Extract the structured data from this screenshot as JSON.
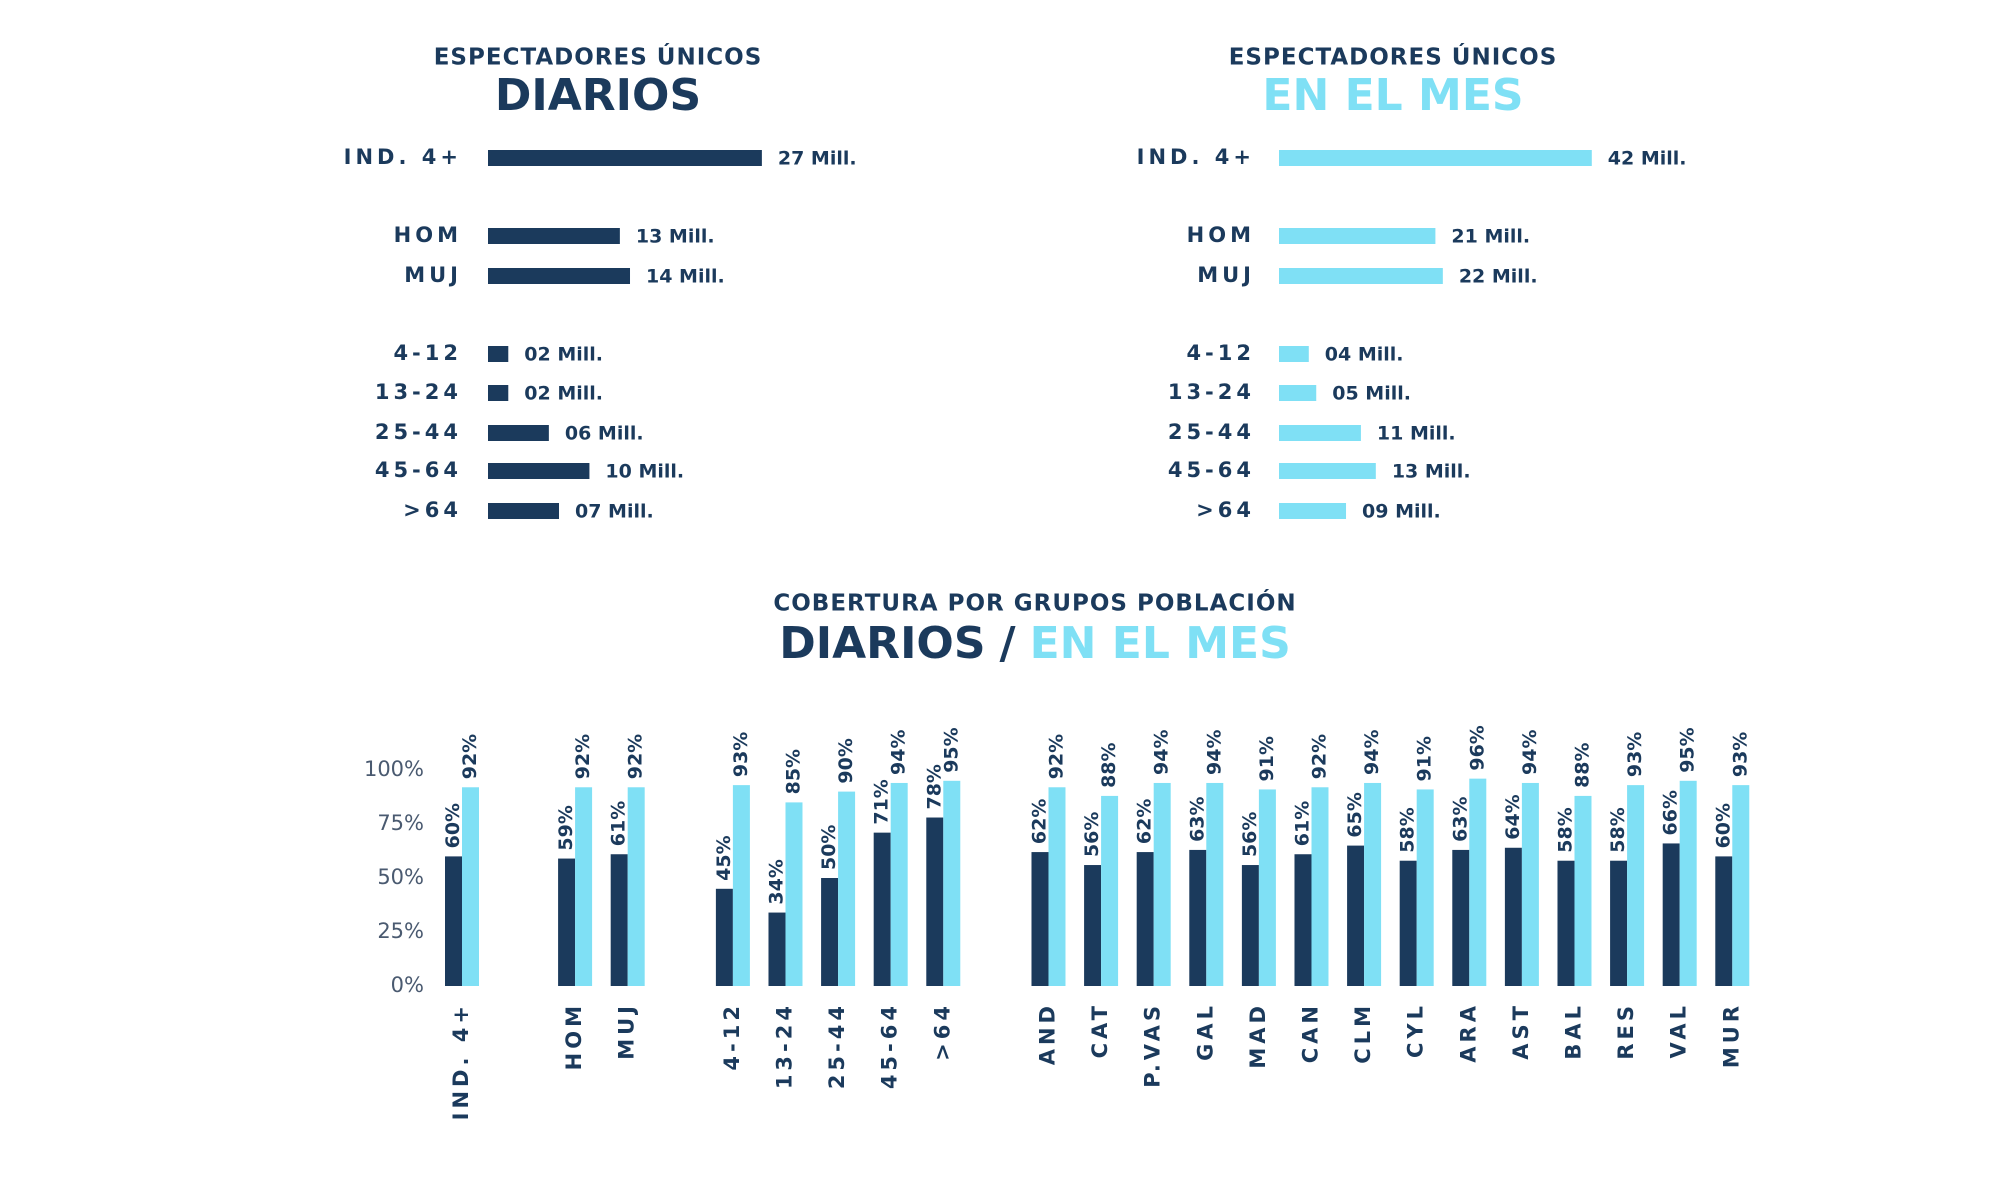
{
  "chart_data": [
    {
      "type": "hbar",
      "subtitle": "ESPECTADORES ÚNICOS",
      "title": "DIARIOS",
      "color": "#1b3a5c",
      "categories": [
        "IND. 4+",
        "HOM",
        "MUJ",
        "4-12",
        "13-24",
        "25-44",
        "45-64",
        ">64"
      ],
      "values": [
        27,
        13,
        14,
        2,
        2,
        6,
        10,
        7
      ],
      "value_labels": [
        "27 Mill.",
        "13 Mill.",
        "14 Mill.",
        "02 Mill.",
        "02 Mill.",
        "06 Mill.",
        "10 Mill.",
        "07 Mill."
      ]
    },
    {
      "type": "hbar",
      "subtitle": "ESPECTADORES ÚNICOS",
      "title": "EN EL MES",
      "color": "#7fe0f5",
      "categories": [
        "IND. 4+",
        "HOM",
        "MUJ",
        "4-12",
        "13-24",
        "25-44",
        "45-64",
        ">64"
      ],
      "values": [
        42,
        21,
        22,
        4,
        5,
        11,
        13,
        9
      ],
      "value_labels": [
        "42 Mill.",
        "21 Mill.",
        "22 Mill.",
        "04 Mill.",
        "05 Mill.",
        "11 Mill.",
        "13 Mill.",
        "09 Mill."
      ]
    },
    {
      "type": "bar",
      "subtitle": "COBERTURA POR GRUPOS POBLACIÓN",
      "title_separator": "/",
      "categories": [
        "IND. 4+",
        "HOM",
        "MUJ",
        "4-12",
        "13-24",
        "25-44",
        "45-64",
        ">64",
        "AND",
        "CAT",
        "P.VAS",
        "GAL",
        "MAD",
        "CAN",
        "CLM",
        "CYL",
        "ARA",
        "AST",
        "BAL",
        "RES",
        "VAL",
        "MUR"
      ],
      "series": [
        {
          "name": "DIARIOS",
          "color": "#1b3a5c",
          "values": [
            60,
            59,
            61,
            45,
            34,
            50,
            71,
            78,
            62,
            56,
            62,
            63,
            56,
            61,
            65,
            58,
            63,
            64,
            58,
            58,
            66,
            60
          ],
          "value_labels": [
            "60%",
            "59%",
            "61%",
            "45%",
            "34%",
            "50%",
            "71%",
            "78%",
            "62%",
            "56%",
            "62%",
            "63%",
            "56%",
            "61%",
            "65%",
            "58%",
            "63%",
            "64%",
            "58%",
            "58%",
            "66%",
            "60%"
          ]
        },
        {
          "name": "EN EL MES",
          "color": "#7fe0f5",
          "values": [
            92,
            92,
            92,
            93,
            85,
            90,
            94,
            95,
            92,
            88,
            94,
            94,
            91,
            92,
            94,
            91,
            96,
            94,
            88,
            93,
            95,
            93
          ],
          "value_labels": [
            "92%",
            "92%",
            "92%",
            "93%",
            "85%",
            "90%",
            "94%",
            "95%",
            "92%",
            "88%",
            "94%",
            "94%",
            "91%",
            "92%",
            "94%",
            "91%",
            "96%",
            "94%",
            "88%",
            "93%",
            "95%",
            "93%"
          ]
        }
      ],
      "ylim": [
        0,
        100
      ],
      "yticks": [
        {
          "value": 0,
          "label": "0%"
        },
        {
          "value": 25,
          "label": "25%"
        },
        {
          "value": 50,
          "label": "50%"
        },
        {
          "value": 75,
          "label": "75%"
        },
        {
          "value": 100,
          "label": "100%"
        }
      ]
    }
  ]
}
